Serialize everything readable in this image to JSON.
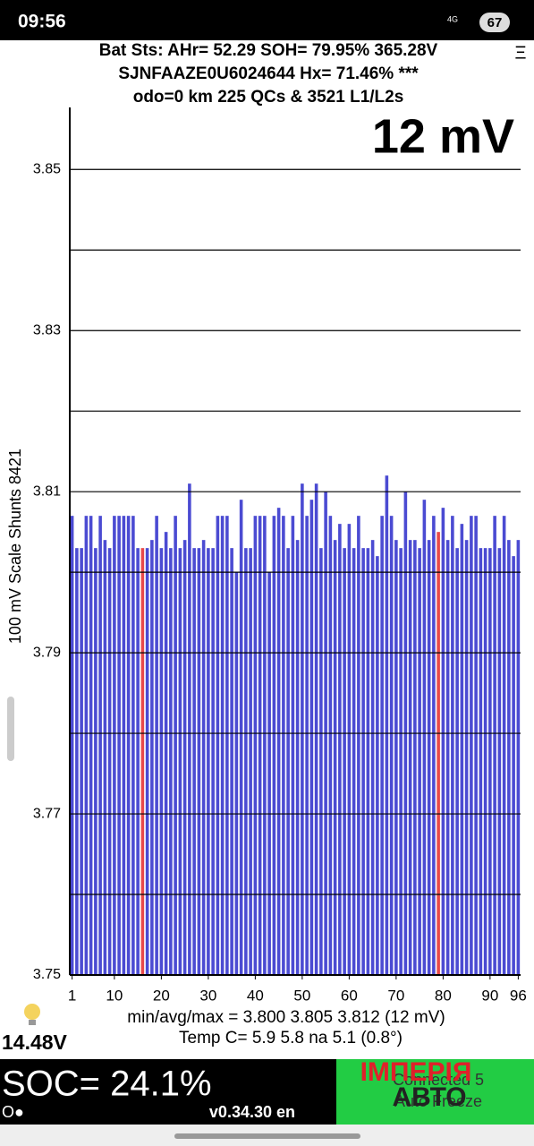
{
  "status_bar": {
    "time": "09:56",
    "battery": "67",
    "network": "4G"
  },
  "header": {
    "lines": [
      "Bat Sts:  AHr= 52.29  SOH= 79.95%  365.28V",
      "SJNFAAZE0U6024644   Hx= 71.46% ***",
      "odo=0 km  225 QCs & 3521 L1/L2s"
    ],
    "menu": "Ξ"
  },
  "chart_data": {
    "type": "bar",
    "annotation": "12 mV",
    "y_label": "100 mV Scale   Shunts 8421",
    "x": [
      1,
      2,
      3,
      4,
      5,
      6,
      7,
      8,
      9,
      10,
      11,
      12,
      13,
      14,
      15,
      16,
      17,
      18,
      19,
      20,
      21,
      22,
      23,
      24,
      25,
      26,
      27,
      28,
      29,
      30,
      31,
      32,
      33,
      34,
      35,
      36,
      37,
      38,
      39,
      40,
      41,
      42,
      43,
      44,
      45,
      46,
      47,
      48,
      49,
      50,
      51,
      52,
      53,
      54,
      55,
      56,
      57,
      58,
      59,
      60,
      61,
      62,
      63,
      64,
      65,
      66,
      67,
      68,
      69,
      70,
      71,
      72,
      73,
      74,
      75,
      76,
      77,
      78,
      79,
      80,
      81,
      82,
      83,
      84,
      85,
      86,
      87,
      88,
      89,
      90,
      91,
      92,
      93,
      94,
      95,
      96
    ],
    "values": [
      3.807,
      3.803,
      3.803,
      3.807,
      3.807,
      3.803,
      3.807,
      3.804,
      3.803,
      3.807,
      3.807,
      3.807,
      3.807,
      3.807,
      3.803,
      3.803,
      3.803,
      3.804,
      3.807,
      3.803,
      3.805,
      3.803,
      3.807,
      3.803,
      3.804,
      3.811,
      3.803,
      3.803,
      3.804,
      3.803,
      3.803,
      3.807,
      3.807,
      3.807,
      3.803,
      3.8,
      3.809,
      3.803,
      3.803,
      3.807,
      3.807,
      3.807,
      3.8,
      3.807,
      3.808,
      3.807,
      3.803,
      3.807,
      3.804,
      3.811,
      3.807,
      3.809,
      3.811,
      3.803,
      3.81,
      3.807,
      3.804,
      3.806,
      3.803,
      3.806,
      3.803,
      3.807,
      3.803,
      3.803,
      3.804,
      3.802,
      3.807,
      3.812,
      3.807,
      3.804,
      3.803,
      3.81,
      3.804,
      3.804,
      3.803,
      3.809,
      3.804,
      3.807,
      3.805,
      3.808,
      3.804,
      3.807,
      3.803,
      3.806,
      3.804,
      3.807,
      3.807,
      3.803,
      3.803,
      3.803,
      3.807,
      3.803,
      3.807,
      3.804,
      3.802,
      3.804
    ],
    "colors": [
      "#4b4bd2",
      "#4b4bd2",
      "#4b4bd2",
      "#4b4bd2",
      "#4b4bd2",
      "#4b4bd2",
      "#4b4bd2",
      "#4b4bd2",
      "#4b4bd2",
      "#4b4bd2",
      "#4b4bd2",
      "#4b4bd2",
      "#4b4bd2",
      "#4b4bd2",
      "#4b4bd2",
      "#e84a4a",
      "#4b4bd2",
      "#4b4bd2",
      "#4b4bd2",
      "#4b4bd2",
      "#4b4bd2",
      "#4b4bd2",
      "#4b4bd2",
      "#4b4bd2",
      "#4b4bd2",
      "#4b4bd2",
      "#4b4bd2",
      "#4b4bd2",
      "#4b4bd2",
      "#4b4bd2",
      "#4b4bd2",
      "#4b4bd2",
      "#4b4bd2",
      "#4b4bd2",
      "#4b4bd2",
      "#4b4bd2",
      "#4b4bd2",
      "#4b4bd2",
      "#4b4bd2",
      "#4b4bd2",
      "#4b4bd2",
      "#4b4bd2",
      "#4b4bd2",
      "#4b4bd2",
      "#4b4bd2",
      "#4b4bd2",
      "#4b4bd2",
      "#4b4bd2",
      "#4b4bd2",
      "#4b4bd2",
      "#4b4bd2",
      "#4b4bd2",
      "#4b4bd2",
      "#4b4bd2",
      "#4b4bd2",
      "#4b4bd2",
      "#4b4bd2",
      "#4b4bd2",
      "#4b4bd2",
      "#4b4bd2",
      "#4b4bd2",
      "#4b4bd2",
      "#4b4bd2",
      "#4b4bd2",
      "#4b4bd2",
      "#4b4bd2",
      "#4b4bd2",
      "#4b4bd2",
      "#4b4bd2",
      "#4b4bd2",
      "#4b4bd2",
      "#4b4bd2",
      "#4b4bd2",
      "#4b4bd2",
      "#4b4bd2",
      "#4b4bd2",
      "#4b4bd2",
      "#4b4bd2",
      "#e84a4a",
      "#4b4bd2",
      "#4b4bd2",
      "#4b4bd2",
      "#4b4bd2",
      "#4b4bd2",
      "#4b4bd2",
      "#4b4bd2",
      "#4b4bd2",
      "#4b4bd2",
      "#4b4bd2",
      "#4b4bd2",
      "#4b4bd2",
      "#4b4bd2",
      "#4b4bd2",
      "#4b4bd2",
      "#4b4bd2",
      "#4b4bd2"
    ],
    "xlim": [
      0.5,
      96.5
    ],
    "xticks": [
      1,
      10,
      20,
      30,
      40,
      50,
      60,
      70,
      80,
      90,
      96
    ],
    "ylim": [
      3.75,
      3.8577
    ],
    "yticks": [
      3.75,
      3.77,
      3.79,
      3.81,
      3.83,
      3.85
    ],
    "grid_lines": [
      3.76,
      3.78,
      3.8,
      3.82,
      3.84
    ],
    "grid": true
  },
  "stats": [
    "min/avg/max = 3.800 3.805 3.812  (12 mV)",
    "Temp C= 5.9  5.8  na  5.1  (0.8°)"
  ],
  "aux_voltage": "14.48V",
  "footer": {
    "soc": "SOC= 24.1%",
    "indicator": "O●",
    "version": "v0.34.30 en",
    "status": [
      "Connected 5",
      "Auto Freeze"
    ],
    "watermark": [
      "ІМПЕРІЯ",
      "АВТО"
    ]
  }
}
